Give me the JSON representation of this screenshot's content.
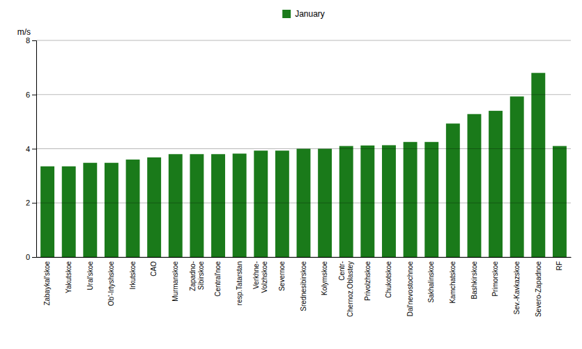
{
  "chart_data": {
    "type": "bar",
    "y_label": "m/s",
    "categories": [
      "Zabaykal'skoe",
      "Yakutskoe",
      "Ural'skoe",
      "Ob'-Irtyshskoe",
      "Irkutskoe",
      "CAO",
      "Murmanskoe",
      "Zapadno-\nSibirskoe",
      "Central'noe",
      "resp.Tatarstan",
      "Verkhne-\nVolzhskoe",
      "Severnoe",
      "Srednesibirskoe",
      "Kolymskoe",
      "Centr-\nChernoz.Oblastey",
      "Privolzhskoe",
      "Chukotskoe",
      "Dal'nevostochnoe",
      "Sakhalinskoe",
      "Kamchatskoe",
      "Bashkirskoe",
      "Primorskoe",
      "Sev.-Kavkazskoe",
      "Severo-Zapadnoe",
      "RF"
    ],
    "series": [
      {
        "name": "January",
        "color": "#1a7a1a",
        "values": [
          3.35,
          3.35,
          3.48,
          3.48,
          3.6,
          3.68,
          3.8,
          3.8,
          3.8,
          3.82,
          3.93,
          3.93,
          4.0,
          4.0,
          4.1,
          4.12,
          4.13,
          4.25,
          4.25,
          4.93,
          5.28,
          5.4,
          5.93,
          6.8,
          4.1
        ]
      }
    ],
    "ylim": [
      0,
      8
    ],
    "yticks": [
      0,
      2,
      4,
      6,
      8
    ],
    "grid": true,
    "legend": "top"
  }
}
